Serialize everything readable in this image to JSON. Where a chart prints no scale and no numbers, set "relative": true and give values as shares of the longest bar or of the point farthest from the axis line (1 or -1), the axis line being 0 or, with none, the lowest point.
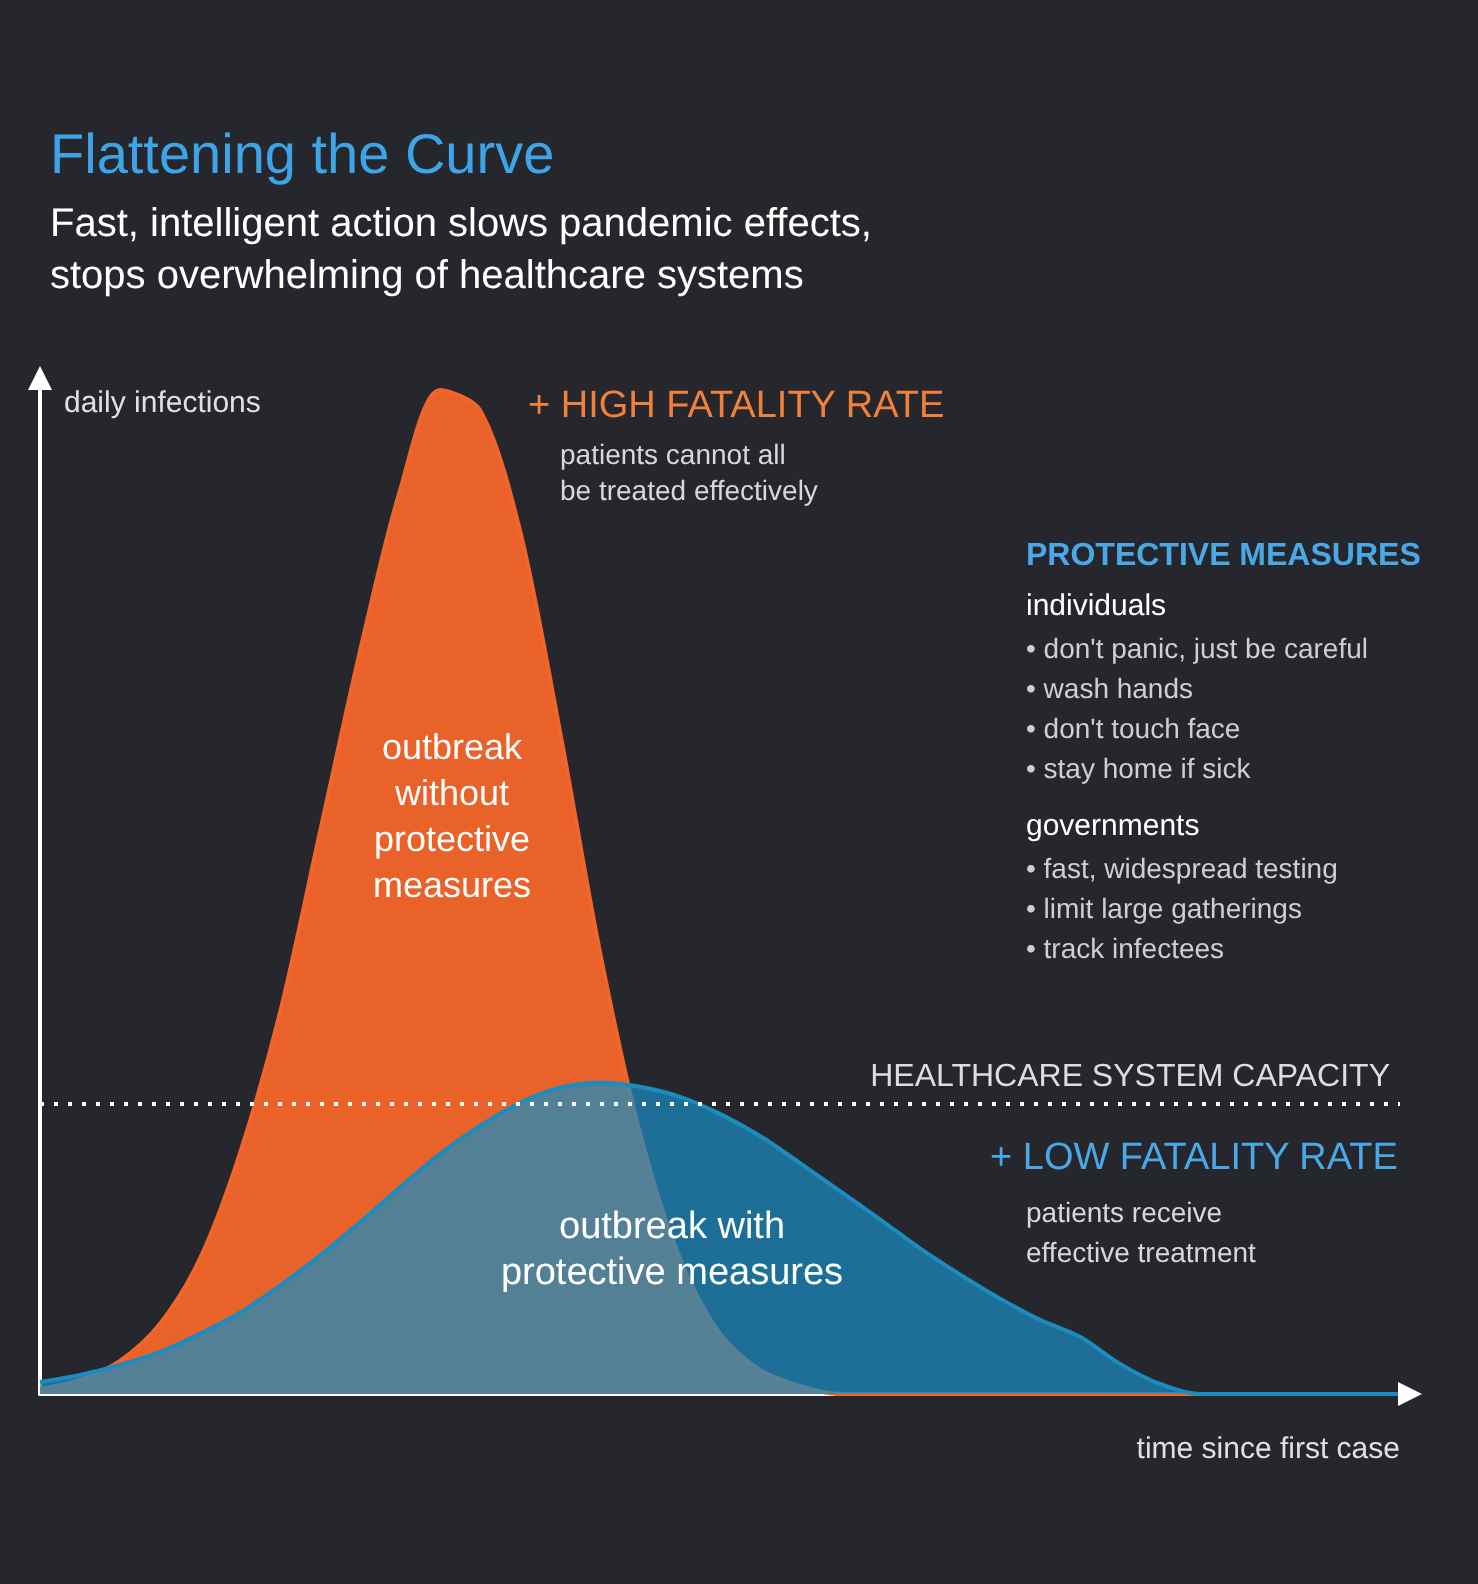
{
  "chart_data": {
    "type": "area",
    "title": "Flattening the Curve",
    "subtitle": "Fast, intelligent action slows pandemic effects,\nstops overwhelming of healthcare systems",
    "xlabel": "time since first case",
    "ylabel": "daily infections",
    "relative": true,
    "categories": [
      null,
      null,
      null,
      null,
      null,
      null,
      null,
      null,
      null,
      null,
      null,
      null,
      null,
      null,
      null,
      null,
      null,
      null,
      null,
      null,
      null,
      null,
      null,
      null,
      null,
      null,
      null,
      null,
      null,
      null,
      null,
      null,
      null,
      null,
      null
    ],
    "series": [
      {
        "color": "#f2652a",
        "values": [
          0.005,
          0.014,
          0.033,
          0.07,
          0.135,
          0.24,
          0.38,
          0.56,
          0.74,
          0.9,
          1,
          0.98,
          0.86,
          0.66,
          0.44,
          0.26,
          0.135,
          0.06,
          0.024,
          0.008,
          0,
          0,
          0,
          0,
          0,
          0,
          0,
          0,
          0,
          0,
          0,
          0,
          0,
          0,
          0
        ]
      },
      {
        "color": "#1b8cc0",
        "values": [
          0.012,
          0.019,
          0.029,
          0.042,
          0.06,
          0.081,
          0.108,
          0.138,
          0.171,
          0.206,
          0.239,
          0.267,
          0.29,
          0.305,
          0.31,
          0.306,
          0.296,
          0.279,
          0.257,
          0.23,
          0.202,
          0.174,
          0.145,
          0.119,
          0.095,
          0.074,
          0.057,
          0.03,
          0.01,
          0,
          0,
          0,
          0,
          0,
          0
        ]
      }
    ],
    "ref_lines": [
      {
        "axis": "y",
        "value": 0.29,
        "label": "HEALTHCARE SYSTEM CAPACITY",
        "color": "#ffffff",
        "line_style": "dotted"
      }
    ],
    "annotations": [
      "+ HIGH FATALITY RATE",
      "patients cannot all\nbe treated effectively",
      "PROTECTIVE MEASURES",
      "individuals",
      "• don't panic, just be careful\n• wash hands\n• don't touch face\n• stay home if sick",
      "governments",
      "• fast, widespread testing\n• limit large gatherings\n• track infectees",
      "+ LOW FATALITY RATE",
      "patients receive\neffective treatment",
      "outbreak\nwithout\nprotective\nmeasures",
      "outbreak with\nprotective measures"
    ]
  }
}
